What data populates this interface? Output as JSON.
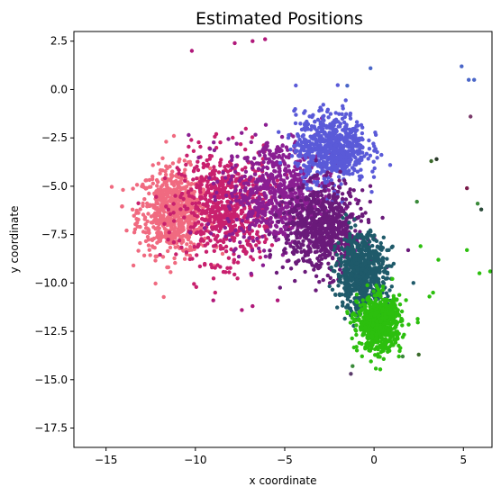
{
  "chart_data": {
    "type": "scatter",
    "title": "Estimated Positions",
    "xlabel": "x coordinate",
    "ylabel": "y coordinate",
    "xlim": [
      -16.8,
      6.6
    ],
    "ylim": [
      -18.5,
      3.0
    ],
    "xticks": [
      -15,
      -10,
      -5,
      0,
      5
    ],
    "xtick_labels": [
      "−15",
      "−10",
      "−5",
      "0",
      "5"
    ],
    "yticks": [
      2.5,
      0.0,
      -2.5,
      -5.0,
      -7.5,
      -10.0,
      -12.5,
      -15.0,
      -17.5
    ],
    "ytick_labels": [
      "2.5",
      "0.0",
      "−2.5",
      "−5.0",
      "−7.5",
      "−10.0",
      "−12.5",
      "−15.0",
      "−17.5"
    ],
    "grid": false,
    "colors": {
      "pink": "#f06a80",
      "magenta": "#b0187a",
      "purple": "#7a1a8a",
      "blue": "#5a5ad8",
      "teal": "#1f5a6a",
      "green": "#2cbf0e"
    },
    "clusters": [
      {
        "name": "pink-lobe",
        "center": [
          -11.2,
          -6.3
        ],
        "spread": [
          1.0,
          1.1
        ],
        "color": "#f06a80"
      },
      {
        "name": "magenta-body",
        "center": [
          -8.3,
          -6.1
        ],
        "spread": [
          1.3,
          1.4
        ],
        "color": "#c8206e"
      },
      {
        "name": "purple-body",
        "center": [
          -5.3,
          -5.3
        ],
        "spread": [
          1.5,
          1.4
        ],
        "color": "#8a1e92"
      },
      {
        "name": "blue-top",
        "center": [
          -2.4,
          -3.0
        ],
        "spread": [
          1.0,
          0.9
        ],
        "color": "#5a5ad8"
      },
      {
        "name": "dark-purple-center",
        "center": [
          -2.8,
          -7.3
        ],
        "spread": [
          1.1,
          1.1
        ],
        "color": "#6a1a7a"
      },
      {
        "name": "teal-diagonal",
        "center": [
          -0.7,
          -9.5
        ],
        "spread": [
          0.7,
          1.0
        ],
        "color": "#1f5a6a"
      },
      {
        "name": "green-tail",
        "center": [
          0.3,
          -12.1
        ],
        "spread": [
          0.6,
          0.7
        ],
        "color": "#2cbf0e"
      }
    ],
    "outliers": [
      {
        "x": 5.3,
        "y": 0.5,
        "color": "#4a66c8"
      },
      {
        "x": 5.6,
        "y": 0.5,
        "color": "#4a66c8"
      },
      {
        "x": 4.9,
        "y": 1.2,
        "color": "#4a66c8"
      },
      {
        "x": 5.4,
        "y": -1.4,
        "color": "#7a3a6a"
      },
      {
        "x": 5.2,
        "y": -5.1,
        "color": "#7a1a4a"
      },
      {
        "x": 5.8,
        "y": -5.9,
        "color": "#3a8a3a"
      },
      {
        "x": 6.0,
        "y": -6.2,
        "color": "#2a4a3a"
      },
      {
        "x": 5.2,
        "y": -8.3,
        "color": "#2cbf0e"
      },
      {
        "x": 5.9,
        "y": -9.5,
        "color": "#2cbf0e"
      },
      {
        "x": 6.5,
        "y": -9.4,
        "color": "#2cbf0e"
      },
      {
        "x": 3.5,
        "y": -3.6,
        "color": "#2a3a2a"
      },
      {
        "x": 3.2,
        "y": -3.7,
        "color": "#3a6a2a"
      },
      {
        "x": 2.4,
        "y": -5.8,
        "color": "#3a8a3a"
      },
      {
        "x": 2.6,
        "y": -8.1,
        "color": "#2cbf0e"
      },
      {
        "x": 3.6,
        "y": -8.8,
        "color": "#2cbf0e"
      },
      {
        "x": 3.1,
        "y": -10.7,
        "color": "#2cbf0e"
      },
      {
        "x": 3.3,
        "y": -10.5,
        "color": "#2cbf0e"
      },
      {
        "x": 2.2,
        "y": -10.0,
        "color": "#1f5a6a"
      },
      {
        "x": 1.6,
        "y": -13.8,
        "color": "#3a8a3a"
      },
      {
        "x": 2.5,
        "y": -13.7,
        "color": "#3a6a2a"
      },
      {
        "x": -1.3,
        "y": -14.7,
        "color": "#5a3a6a"
      },
      {
        "x": -1.2,
        "y": -14.3,
        "color": "#3a8a3a"
      },
      {
        "x": -6.8,
        "y": 2.5,
        "color": "#b0187a"
      },
      {
        "x": -6.1,
        "y": 2.6,
        "color": "#b0187a"
      },
      {
        "x": -7.8,
        "y": 2.4,
        "color": "#b0187a"
      },
      {
        "x": -10.2,
        "y": 2.0,
        "color": "#b0187a"
      },
      {
        "x": -11.2,
        "y": -2.4,
        "color": "#f06a80"
      },
      {
        "x": -12.4,
        "y": -4.5,
        "color": "#f06a80"
      },
      {
        "x": -9.0,
        "y": -10.9,
        "color": "#b0187a"
      },
      {
        "x": -7.4,
        "y": -11.4,
        "color": "#b0187a"
      },
      {
        "x": -6.8,
        "y": -11.2,
        "color": "#b0187a"
      },
      {
        "x": -5.4,
        "y": -10.9,
        "color": "#b0187a"
      },
      {
        "x": -0.2,
        "y": 1.1,
        "color": "#4a66c8"
      },
      {
        "x": -1.5,
        "y": 0.2,
        "color": "#4a66c8"
      }
    ]
  }
}
